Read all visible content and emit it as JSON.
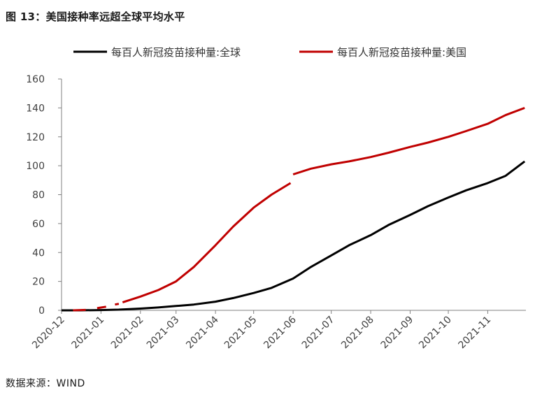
{
  "figure": {
    "title": "图 13：美国接种率远超全球平均水平",
    "source": "数据来源：WIND"
  },
  "chart_data": {
    "type": "line",
    "title": "图 13：美国接种率远超全球平均水平",
    "xlabel": "",
    "ylabel": "",
    "ylim": [
      0,
      160
    ],
    "yticks": [
      0,
      20,
      40,
      60,
      80,
      100,
      120,
      140,
      160
    ],
    "xticks": [
      "2020-12",
      "2021-01",
      "2021-02",
      "2021-03",
      "2021-04",
      "2021-05",
      "2021-06",
      "2021-07",
      "2021-08",
      "2021-09",
      "2021-10",
      "2021-11"
    ],
    "xlim": [
      "2020-12-01",
      "2021-12-01"
    ],
    "grid": false,
    "legend": "top",
    "series": [
      {
        "name": "每百人新冠疫苗接种量:全球",
        "color": "#000000",
        "points": [
          [
            "2020-12-01",
            0
          ],
          [
            "2020-12-15",
            0
          ],
          [
            "2021-01-01",
            0.2
          ],
          [
            "2021-01-15",
            0.5
          ],
          [
            "2021-02-01",
            1.2
          ],
          [
            "2021-02-15",
            2
          ],
          [
            "2021-03-01",
            3
          ],
          [
            "2021-03-15",
            4
          ],
          [
            "2021-04-01",
            6
          ],
          [
            "2021-04-15",
            8.5
          ],
          [
            "2021-05-01",
            12
          ],
          [
            "2021-05-15",
            15.5
          ],
          [
            "2021-06-01",
            22
          ],
          [
            "2021-06-15",
            30
          ],
          [
            "2021-07-01",
            38
          ],
          [
            "2021-07-15",
            45
          ],
          [
            "2021-08-01",
            52
          ],
          [
            "2021-08-15",
            59
          ],
          [
            "2021-09-01",
            66
          ],
          [
            "2021-09-15",
            72
          ],
          [
            "2021-10-01",
            78
          ],
          [
            "2021-10-15",
            83
          ],
          [
            "2021-11-01",
            88
          ],
          [
            "2021-11-15",
            93
          ],
          [
            "2021-11-30",
            103
          ]
        ]
      },
      {
        "name": "每百人新冠疫苗接种量:美国",
        "color": "#c00000",
        "segments": [
          [
            [
              "2020-12-10",
              0
            ],
            [
              "2020-12-20",
              0.3
            ]
          ],
          [
            [
              "2020-12-29",
              1.5
            ],
            [
              "2021-01-05",
              2.5
            ]
          ],
          [
            [
              "2021-01-12",
              4
            ],
            [
              "2021-01-15",
              4.5
            ]
          ],
          [
            [
              "2021-01-18",
              5.5
            ],
            [
              "2021-02-01",
              9.5
            ],
            [
              "2021-02-15",
              14
            ],
            [
              "2021-03-01",
              20
            ],
            [
              "2021-03-15",
              30
            ],
            [
              "2021-04-01",
              45
            ],
            [
              "2021-04-15",
              58
            ],
            [
              "2021-05-01",
              71
            ],
            [
              "2021-05-15",
              80
            ],
            [
              "2021-05-30",
              88
            ]
          ],
          [
            [
              "2021-06-01",
              94
            ],
            [
              "2021-06-15",
              98
            ],
            [
              "2021-07-01",
              101
            ],
            [
              "2021-07-15",
              103
            ],
            [
              "2021-08-01",
              106
            ],
            [
              "2021-08-15",
              109
            ],
            [
              "2021-09-01",
              113
            ],
            [
              "2021-09-15",
              116
            ],
            [
              "2021-10-01",
              120
            ],
            [
              "2021-10-15",
              124
            ],
            [
              "2021-11-01",
              129
            ],
            [
              "2021-11-15",
              135
            ],
            [
              "2021-11-30",
              140
            ]
          ]
        ]
      }
    ]
  }
}
